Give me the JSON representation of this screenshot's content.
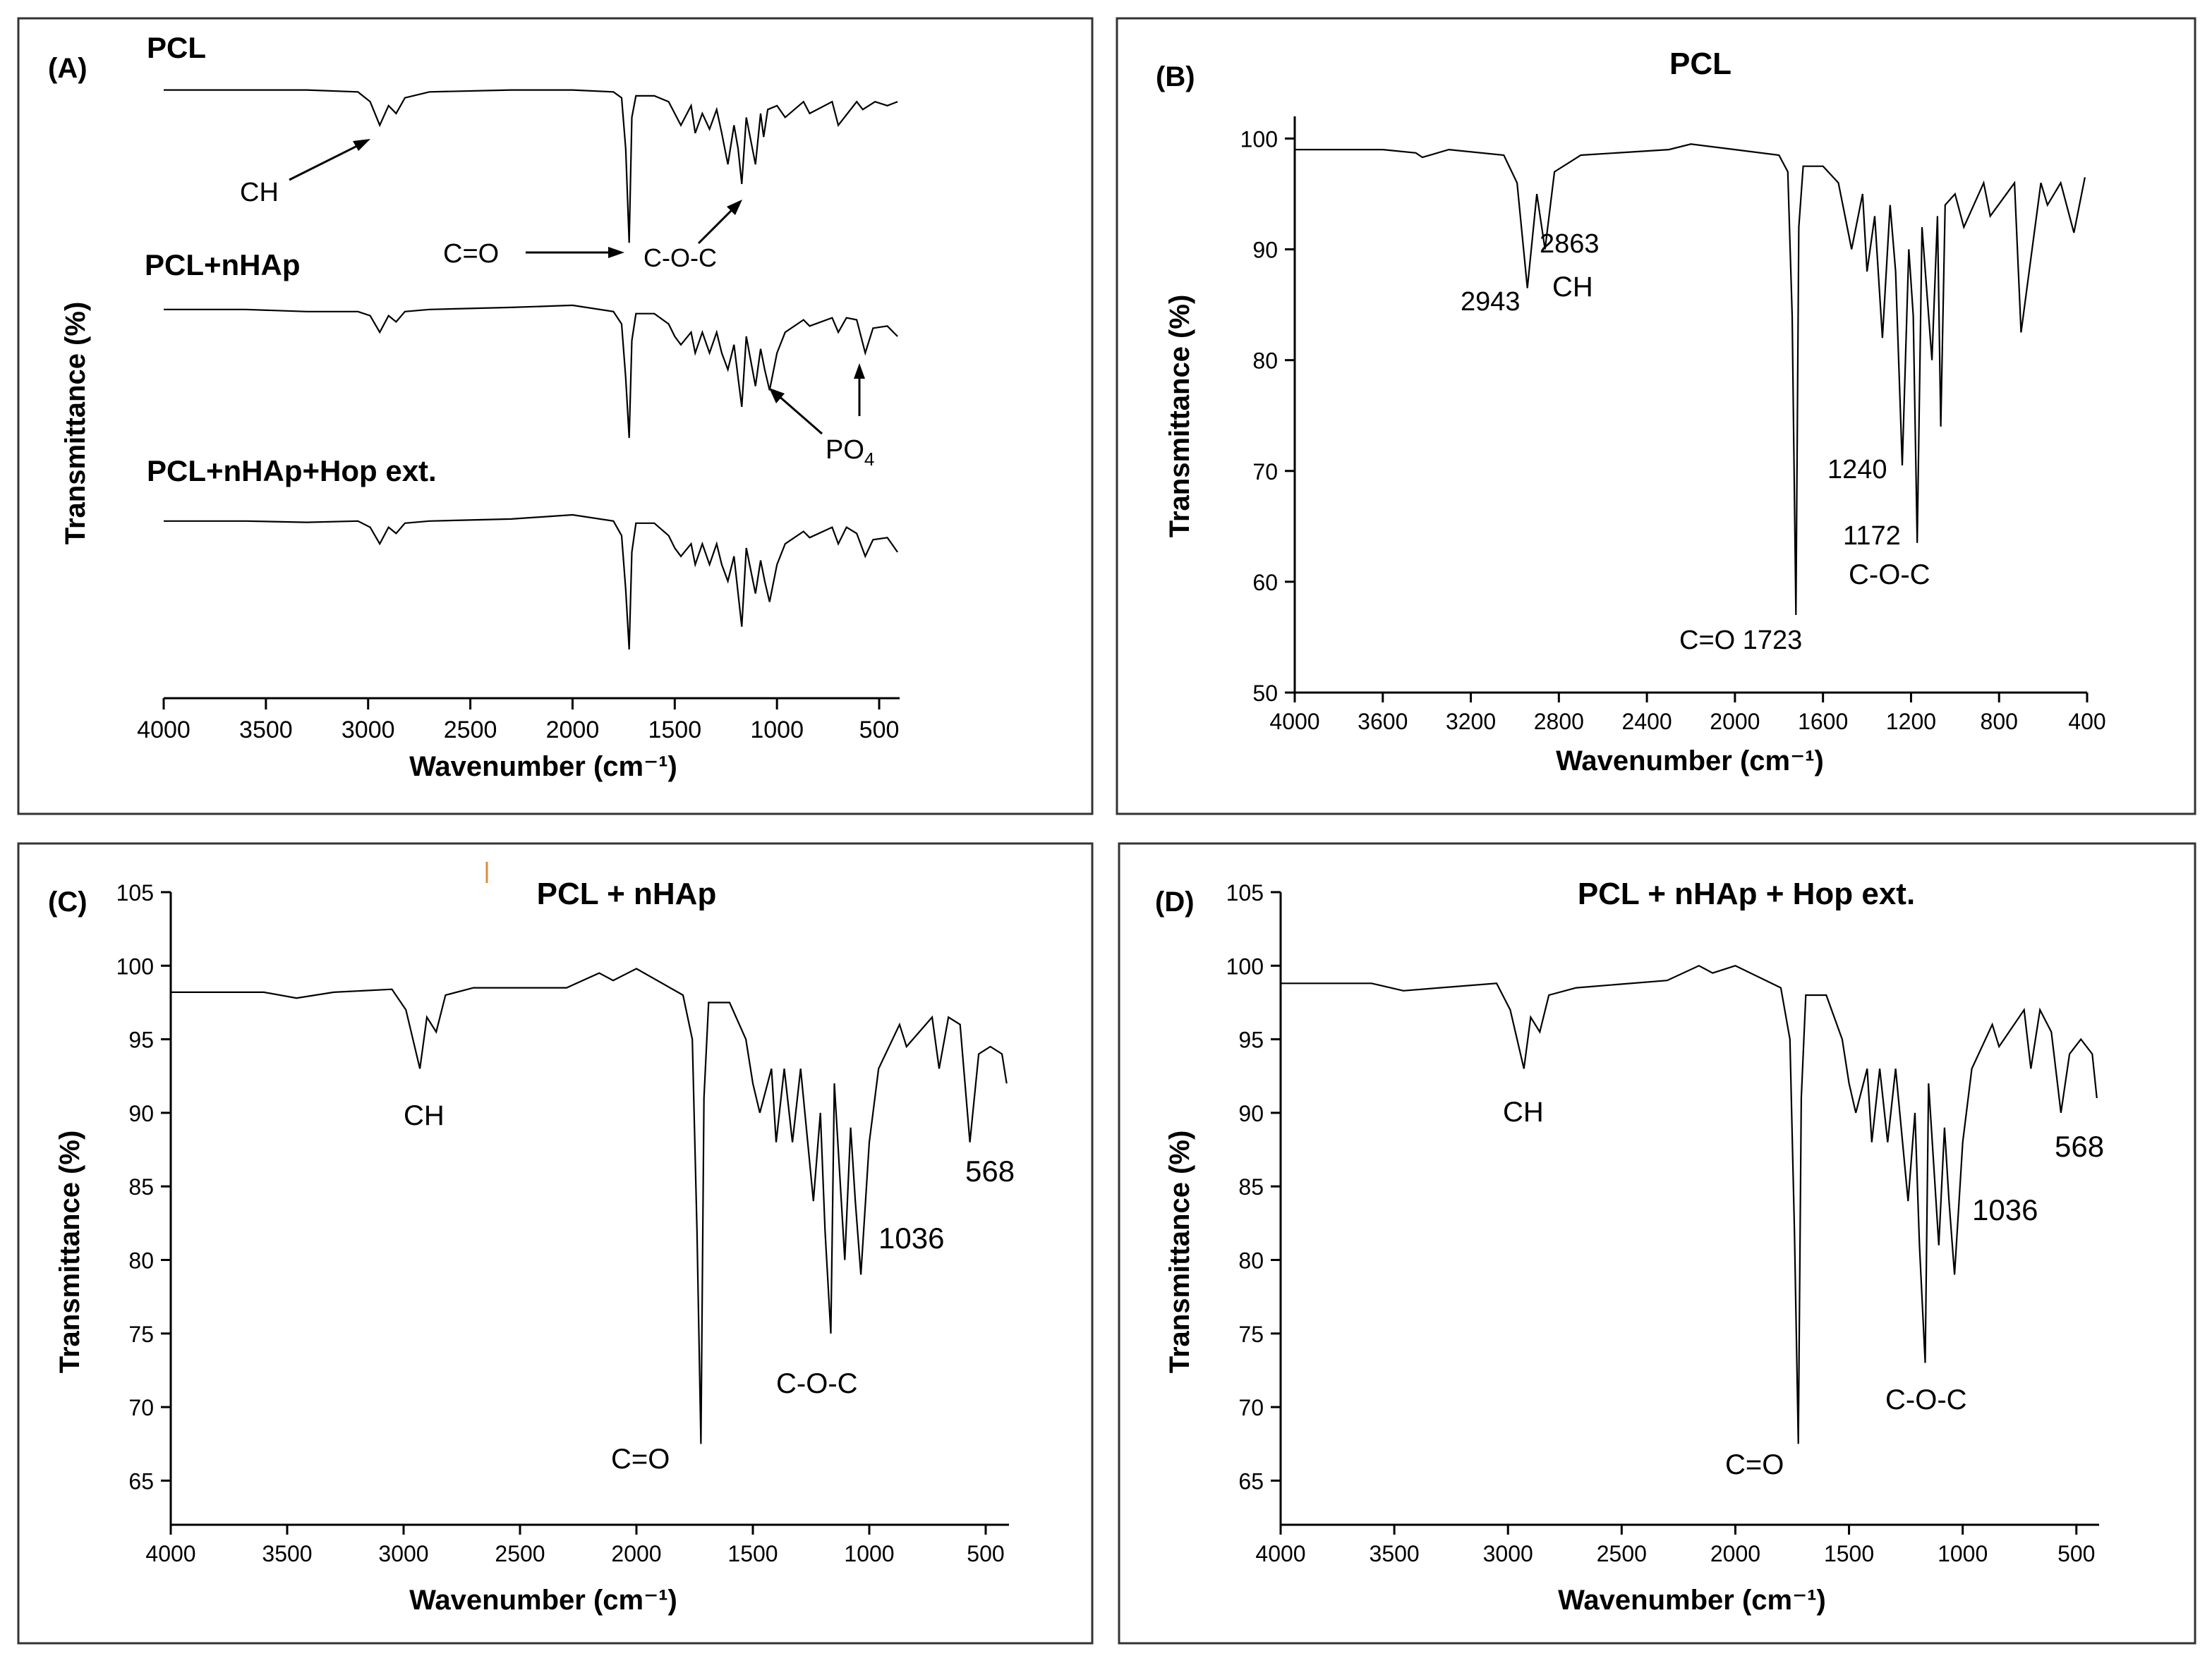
{
  "figure": {
    "panels": [
      {
        "letter": "(A)"
      },
      {
        "letter": "(B)"
      },
      {
        "letter": "(C)"
      },
      {
        "letter": "(D)"
      }
    ]
  },
  "chart_data": [
    {
      "panel": "(A)",
      "type": "line",
      "title": "",
      "xlabel": "Wavenumber (cm⁻¹)",
      "ylabel": "Transmittance (%)",
      "xlim": [
        4000,
        400
      ],
      "xticks": [
        4000,
        3500,
        3000,
        2500,
        2000,
        1500,
        1000,
        500
      ],
      "yticks": [],
      "series": [
        {
          "name": "PCL",
          "x": [
            4000,
            3600,
            3300,
            3050,
            2990,
            2943,
            2900,
            2863,
            2820,
            2700,
            2300,
            2000,
            1800,
            1760,
            1740,
            1723,
            1710,
            1690,
            1600,
            1530,
            1500,
            1470,
            1420,
            1400,
            1365,
            1330,
            1295,
            1270,
            1240,
            1210,
            1190,
            1172,
            1150,
            1105,
            1080,
            1065,
            1045,
            1000,
            960,
            870,
            840,
            730,
            700,
            610,
            580,
            520,
            460,
            410
          ],
          "y": [
            99,
            99,
            99,
            98.5,
            96,
            90,
            95,
            93,
            97,
            98.5,
            99,
            99,
            98.5,
            97,
            84,
            60,
            92,
            97.5,
            97.5,
            96,
            93,
            90,
            95,
            88,
            93,
            89,
            94,
            88,
            80,
            90,
            84,
            75,
            92,
            80,
            93,
            87,
            94,
            95,
            92,
            96,
            93,
            96,
            90,
            96,
            94,
            96,
            95,
            96
          ]
        },
        {
          "name": "PCL+nHAp",
          "x": [
            4000,
            3600,
            3300,
            3050,
            2990,
            2943,
            2900,
            2863,
            2820,
            2700,
            2300,
            2000,
            1800,
            1760,
            1740,
            1723,
            1710,
            1690,
            1600,
            1530,
            1500,
            1470,
            1420,
            1400,
            1365,
            1330,
            1295,
            1270,
            1240,
            1210,
            1190,
            1172,
            1150,
            1105,
            1080,
            1060,
            1036,
            1000,
            960,
            870,
            840,
            730,
            700,
            660,
            610,
            568,
            530,
            460,
            410
          ],
          "y": [
            98.5,
            98.5,
            98,
            98,
            97,
            93,
            97,
            95.5,
            98,
            98.5,
            99,
            99.5,
            98,
            95,
            82,
            67.5,
            91,
            97.5,
            97.5,
            95,
            92,
            90,
            93,
            88,
            93,
            88,
            93,
            88,
            84,
            90,
            82,
            75,
            92,
            80,
            89,
            84,
            79,
            88,
            93,
            96,
            94.5,
            96.5,
            93,
            96.5,
            96,
            88,
            94,
            94.5,
            92
          ]
        },
        {
          "name": "PCL+nHAp+Hop ext.",
          "x": [
            4000,
            3600,
            3300,
            3050,
            2990,
            2943,
            2900,
            2863,
            2820,
            2700,
            2300,
            2000,
            1800,
            1760,
            1740,
            1723,
            1710,
            1690,
            1600,
            1530,
            1500,
            1470,
            1420,
            1400,
            1365,
            1330,
            1295,
            1270,
            1240,
            1210,
            1190,
            1172,
            1150,
            1105,
            1080,
            1060,
            1036,
            1000,
            960,
            870,
            840,
            730,
            700,
            660,
            610,
            568,
            530,
            460,
            410
          ],
          "y": [
            98.5,
            98.5,
            98.2,
            98.5,
            97,
            93,
            97,
            95.5,
            98,
            98.5,
            99,
            100,
            98.5,
            95,
            82,
            67.5,
            91,
            98,
            98,
            95,
            92,
            90,
            93,
            88,
            93,
            88,
            93,
            88,
            84,
            90,
            81,
            73,
            92,
            81,
            89,
            84,
            79,
            88,
            93,
            96,
            94.5,
            97,
            93,
            97,
            95.5,
            90,
            94,
            94.5,
            91
          ]
        }
      ],
      "annotations": [
        "CH",
        "C=O",
        "C-O-C",
        "PO",
        "4"
      ]
    },
    {
      "panel": "(B)",
      "type": "line",
      "title": "PCL",
      "xlabel": "Wavenumber (cm⁻¹)",
      "ylabel": "Transmittance (%)",
      "xlim": [
        4000,
        400
      ],
      "ylim": [
        50,
        102
      ],
      "xticks": [
        4000,
        3600,
        3200,
        2800,
        2400,
        2000,
        1600,
        1200,
        800,
        400
      ],
      "yticks": [
        50,
        60,
        70,
        80,
        90,
        100
      ],
      "series": [
        {
          "name": "PCL",
          "x": [
            4000,
            3600,
            3450,
            3420,
            3300,
            3050,
            2990,
            2943,
            2900,
            2863,
            2820,
            2700,
            2300,
            2200,
            2000,
            1800,
            1760,
            1740,
            1723,
            1710,
            1690,
            1600,
            1530,
            1500,
            1470,
            1420,
            1400,
            1365,
            1330,
            1295,
            1270,
            1240,
            1210,
            1190,
            1172,
            1150,
            1105,
            1080,
            1065,
            1045,
            1000,
            960,
            870,
            840,
            730,
            700,
            610,
            580,
            520,
            460,
            410
          ],
          "y": [
            99,
            99,
            98.7,
            98.3,
            99,
            98.5,
            96,
            86.5,
            95,
            90,
            97,
            98.5,
            99,
            99.5,
            99,
            98.5,
            97,
            84,
            57,
            92,
            97.5,
            97.5,
            96,
            93,
            90,
            95,
            88,
            93,
            82,
            94,
            88,
            70.5,
            90,
            84,
            63.5,
            92,
            80,
            93,
            74,
            94,
            95,
            92,
            96,
            93,
            96,
            82.5,
            96,
            94,
            96,
            91.5,
            96.5
          ]
        }
      ],
      "annotations": [
        "2943",
        "2863",
        "CH",
        "1240",
        "1172",
        "C-O-C",
        "C=O 1723"
      ]
    },
    {
      "panel": "(C)",
      "type": "line",
      "title": "PCL + nHAp",
      "xlabel": "Wavenumber (cm⁻¹)",
      "ylabel": "Transmittance (%)",
      "xlim": [
        4000,
        400
      ],
      "ylim": [
        62,
        105
      ],
      "xticks": [
        4000,
        3500,
        3000,
        2500,
        2000,
        1500,
        1000,
        500
      ],
      "yticks": [
        65,
        70,
        75,
        80,
        85,
        90,
        95,
        100,
        105
      ],
      "series": [
        {
          "name": "PCL + nHAp",
          "x": [
            4000,
            3600,
            3460,
            3300,
            3050,
            2990,
            2930,
            2900,
            2860,
            2820,
            2700,
            2300,
            2160,
            2100,
            2000,
            1800,
            1760,
            1740,
            1723,
            1710,
            1690,
            1600,
            1530,
            1500,
            1470,
            1420,
            1400,
            1365,
            1330,
            1295,
            1240,
            1210,
            1190,
            1165,
            1150,
            1105,
            1080,
            1060,
            1036,
            1000,
            960,
            870,
            840,
            730,
            700,
            660,
            610,
            568,
            530,
            480,
            430,
            410
          ],
          "y": [
            98.2,
            98.2,
            97.8,
            98.2,
            98.4,
            97,
            93,
            96.5,
            95.5,
            98,
            98.5,
            98.5,
            99.5,
            99,
            99.8,
            98,
            95,
            82,
            67.5,
            91,
            97.5,
            97.5,
            95,
            92,
            90,
            93,
            88,
            93,
            88,
            93,
            84,
            90,
            82,
            75,
            92,
            80,
            89,
            84,
            79,
            88,
            93,
            96,
            94.5,
            96.5,
            93,
            96.5,
            96,
            88,
            94,
            94.5,
            94,
            92
          ]
        }
      ],
      "annotations": [
        "CH",
        "C=O",
        "C-O-C",
        "1036",
        "568"
      ]
    },
    {
      "panel": "(D)",
      "type": "line",
      "title": "PCL + nHAp + Hop ext.",
      "xlabel": "Wavenumber (cm⁻¹)",
      "ylabel": "Transmittance (%)",
      "xlim": [
        4000,
        400
      ],
      "ylim": [
        62,
        105
      ],
      "xticks": [
        4000,
        3500,
        3000,
        2500,
        2000,
        1500,
        1000,
        500
      ],
      "yticks": [
        65,
        70,
        75,
        80,
        85,
        90,
        95,
        100,
        105
      ],
      "series": [
        {
          "name": "PCL + nHAp + Hop ext.",
          "x": [
            4000,
            3600,
            3460,
            3300,
            3050,
            2990,
            2930,
            2900,
            2860,
            2820,
            2700,
            2300,
            2160,
            2100,
            2000,
            1800,
            1760,
            1740,
            1723,
            1710,
            1690,
            1600,
            1530,
            1500,
            1470,
            1420,
            1400,
            1365,
            1330,
            1295,
            1240,
            1210,
            1190,
            1165,
            1150,
            1105,
            1080,
            1060,
            1036,
            1000,
            960,
            870,
            840,
            730,
            700,
            660,
            610,
            568,
            530,
            480,
            430,
            410
          ],
          "y": [
            98.8,
            98.8,
            98.3,
            98.5,
            98.8,
            97,
            93,
            96.5,
            95.5,
            98,
            98.5,
            99,
            100,
            99.5,
            100,
            98.5,
            95,
            82,
            67.5,
            91,
            98,
            98,
            95,
            92,
            90,
            93,
            88,
            93,
            88,
            93,
            84,
            90,
            81,
            73,
            92,
            81,
            89,
            84,
            79,
            88,
            93,
            96,
            94.5,
            97,
            93,
            97,
            95.5,
            90,
            94,
            95,
            94,
            91
          ]
        }
      ],
      "annotations": [
        "CH",
        "C=O",
        "C-O-C",
        "1036",
        "568"
      ]
    }
  ]
}
